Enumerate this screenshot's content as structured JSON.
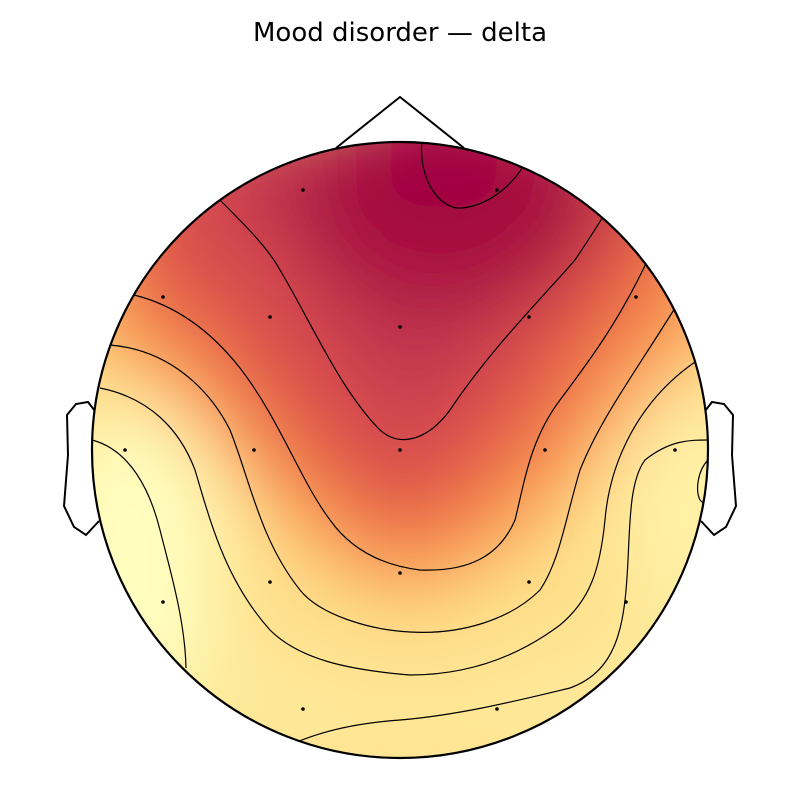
{
  "title": "Mood disorder — delta",
  "colormap": "Spectral",
  "colors": {
    "head_outline": "#000000",
    "contour_line": "#000000",
    "electrode": "#000000",
    "high": "#a0003d",
    "mid_high": "#d94e4e",
    "mid": "#f57a45",
    "mid_low": "#fdbf6f",
    "low": "#fffec0"
  },
  "electrode_count": 19
}
